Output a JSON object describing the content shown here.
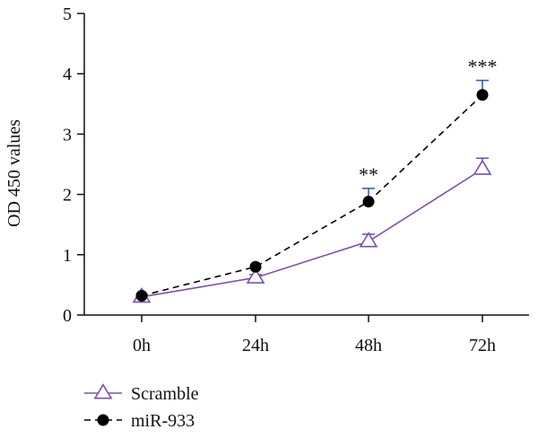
{
  "chart_data": {
    "type": "line",
    "categories": [
      "0h",
      "24h",
      "48h",
      "72h"
    ],
    "xlabel": "",
    "ylabel": "OD 450 values",
    "ylim": [
      0,
      5
    ],
    "yticks": [
      "0",
      "1",
      "2",
      "3",
      "4",
      "5"
    ],
    "grid": false,
    "legend_position": "bottom-left",
    "series": [
      {
        "name": "Scramble",
        "values": [
          0.3,
          0.62,
          1.22,
          2.42
        ],
        "errors": [
          0.0,
          0.05,
          0.12,
          0.18
        ],
        "color": "#7b52ab",
        "marker": "open-triangle",
        "line_style": "solid"
      },
      {
        "name": "miR-933",
        "values": [
          0.32,
          0.8,
          1.88,
          3.65
        ],
        "errors": [
          0.0,
          0.0,
          0.22,
          0.24
        ],
        "color": "#000000",
        "error_color": "#3a5fa8",
        "marker": "filled-circle",
        "line_style": "dashed"
      }
    ],
    "annotations": [
      {
        "category": "48h",
        "text": "**"
      },
      {
        "category": "72h",
        "text": "***"
      }
    ]
  }
}
